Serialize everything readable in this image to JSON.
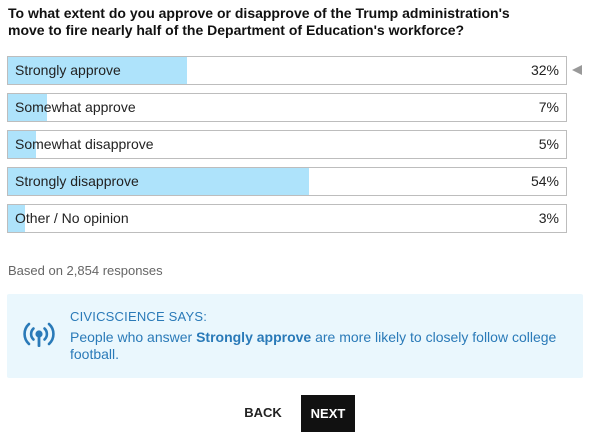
{
  "question": {
    "text": "To what extent do you approve or disapprove of the Trump administration's move to fire nearly half of the Department of Education's workforce?"
  },
  "answers": [
    {
      "label": "Strongly approve",
      "percent": 32,
      "percent_label": "32%",
      "selected": true
    },
    {
      "label": "Somewhat approve",
      "percent": 7,
      "percent_label": "7%",
      "selected": false
    },
    {
      "label": "Somewhat disapprove",
      "percent": 5,
      "percent_label": "5%",
      "selected": false
    },
    {
      "label": "Strongly disapprove",
      "percent": 54,
      "percent_label": "54%",
      "selected": false
    },
    {
      "label": "Other / No opinion",
      "percent": 3,
      "percent_label": "3%",
      "selected": false
    }
  ],
  "responses": {
    "text": "Based on 2,854 responses"
  },
  "civicscience": {
    "icon": "broadcast-icon",
    "title": "CIVICSCIENCE SAYS:",
    "text_before": "People who answer ",
    "highlight": "Strongly approve",
    "text_after": " are more likely to closely follow college football."
  },
  "nav": {
    "back_label": "BACK",
    "next_label": "NEXT"
  },
  "colors": {
    "fill": "#aee3fb",
    "says_background": "#eaf7fd",
    "says_text": "#2a7ab8",
    "next_background": "#111111",
    "marker": "#999999"
  }
}
